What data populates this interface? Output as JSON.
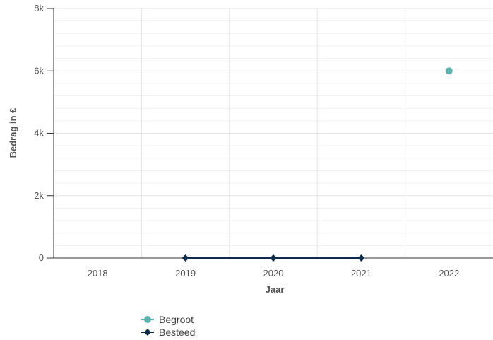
{
  "chart_data": {
    "type": "line",
    "title": "",
    "xlabel": "Jaar",
    "ylabel": "Bedrag in €",
    "categories": [
      "2018",
      "2019",
      "2020",
      "2021",
      "2022"
    ],
    "y_ticks": [
      0,
      2000,
      4000,
      6000,
      8000
    ],
    "y_tick_labels": [
      "0",
      "2k",
      "4k",
      "6k",
      "8k"
    ],
    "ylim": [
      0,
      8000
    ],
    "grid": true,
    "legend_position": "bottom-left",
    "series": [
      {
        "name": "Begroot",
        "values": [
          null,
          null,
          null,
          null,
          6000
        ],
        "color": "#5cb0ad",
        "marker": "circle"
      },
      {
        "name": "Besteed",
        "values": [
          null,
          0,
          0,
          0,
          null
        ],
        "color": "#0f2b4a",
        "marker": "diamond"
      }
    ]
  }
}
